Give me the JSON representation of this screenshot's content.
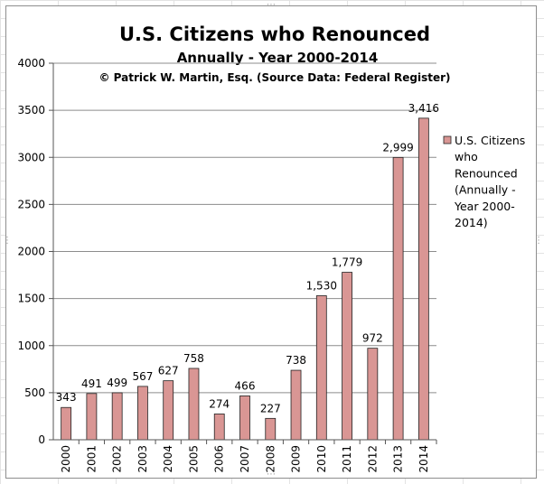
{
  "chart_data": {
    "type": "bar",
    "title": "U.S. Citizens who Renounced",
    "subtitle": "Annually - Year 2000-2014",
    "credit": "© Patrick W. Martin, Esq. (Source Data: Federal Register)",
    "categories": [
      "2000",
      "2001",
      "2002",
      "2003",
      "2004",
      "2005",
      "2006",
      "2007",
      "2008",
      "2009",
      "2010",
      "2011",
      "2012",
      "2013",
      "2014"
    ],
    "series": [
      {
        "name": "U.S. Citizens who Renounced (Annually - Year 2000-2014)",
        "values": [
          343,
          491,
          499,
          567,
          627,
          758,
          274,
          466,
          227,
          738,
          1530,
          1779,
          972,
          2999,
          3416
        ],
        "labels": [
          "343",
          "491",
          "499",
          "567",
          "627",
          "758",
          "274",
          "466",
          "227",
          "738",
          "1,530",
          "1,779",
          "972",
          "2,999",
          "3,416"
        ]
      }
    ],
    "legend_lines": [
      "U.S. Citizens",
      "who",
      "Renounced",
      "(Annually -",
      "Year 2000-",
      "2014)"
    ],
    "xlabel": "",
    "ylabel": "",
    "ylim": [
      0,
      4000
    ],
    "yticks": [
      "0",
      "500",
      "1000",
      "1500",
      "2000",
      "2500",
      "3000",
      "3500",
      "4000"
    ],
    "ytick_values": [
      0,
      500,
      1000,
      1500,
      2000,
      2500,
      3000,
      3500,
      4000
    ],
    "grid": true,
    "legend_position": "right",
    "colors": {
      "bar_fill": "#d99694",
      "bar_stroke": "#222222",
      "grid": "#8c8c8c"
    }
  }
}
